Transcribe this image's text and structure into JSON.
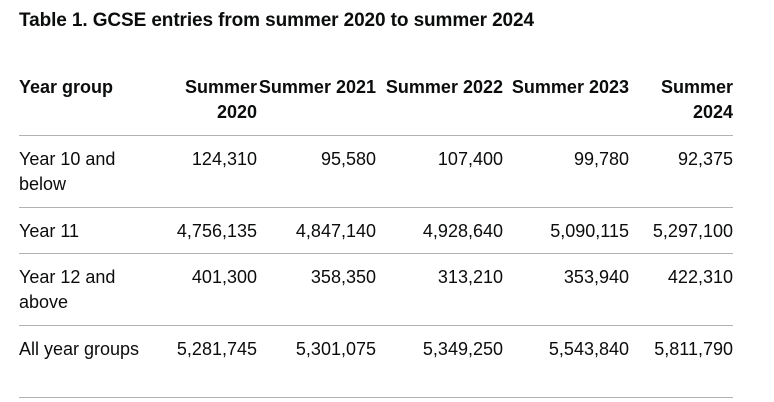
{
  "caption": "Table 1. GCSE entries from summer 2020 to summer 2024",
  "table": {
    "headers": [
      "Year group",
      "Summer 2020",
      "Summer 2021",
      "Summer 2022",
      "Summer 2023",
      "Summer 2024"
    ],
    "rows": [
      [
        "Year 10 and below",
        "124,310",
        "95,580",
        "107,400",
        "99,780",
        "92,375"
      ],
      [
        "Year 11",
        "4,756,135",
        "4,847,140",
        "4,928,640",
        "5,090,115",
        "5,297,100"
      ],
      [
        "Year 12 and above",
        "401,300",
        "358,350",
        "313,210",
        "353,940",
        "422,310"
      ],
      [
        "All year groups",
        "5,281,745",
        "5,301,075",
        "5,349,250",
        "5,543,840",
        "5,811,790"
      ]
    ]
  }
}
